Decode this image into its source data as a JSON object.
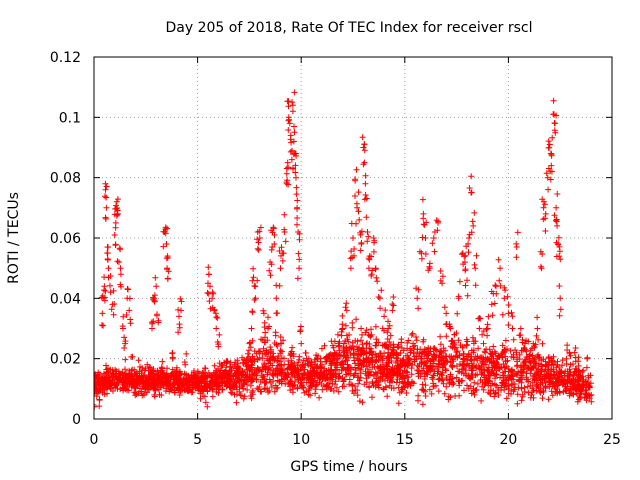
{
  "chart_data": {
    "type": "scatter",
    "title": "Day 205 of 2018, Rate Of TEC Index for receiver rscl",
    "xlabel": "GPS time / hours",
    "ylabel": "ROTI / TECUs",
    "xlim": [
      0,
      25
    ],
    "ylim": [
      0,
      0.12
    ],
    "xticks": [
      0,
      5,
      10,
      15,
      20,
      25
    ],
    "xtick_labels": [
      "0",
      "5",
      "10",
      "15",
      "20",
      "25"
    ],
    "yticks": [
      0,
      0.02,
      0.04,
      0.06,
      0.08,
      0.1,
      0.12
    ],
    "ytick_labels": [
      "0",
      "0.02",
      "0.04",
      "0.06",
      "0.08",
      "0.1",
      "0.12"
    ],
    "grid": true,
    "marker": "+",
    "series": [
      {
        "name": "ROTI",
        "color": "#ff0000",
        "points": [
          [
            0.0,
            0.01
          ],
          [
            0.2,
            0.009
          ],
          [
            0.3,
            0.012
          ],
          [
            0.4,
            0.035
          ],
          [
            0.45,
            0.04
          ],
          [
            0.5,
            0.044
          ],
          [
            0.55,
            0.078
          ],
          [
            0.6,
            0.07
          ],
          [
            0.65,
            0.057
          ],
          [
            0.7,
            0.05
          ],
          [
            0.8,
            0.042
          ],
          [
            0.9,
            0.038
          ],
          [
            1.0,
            0.061
          ],
          [
            1.05,
            0.065
          ],
          [
            1.1,
            0.072
          ],
          [
            1.15,
            0.068
          ],
          [
            1.2,
            0.052
          ],
          [
            1.3,
            0.048
          ],
          [
            1.4,
            0.03
          ],
          [
            1.5,
            0.025
          ],
          [
            1.6,
            0.04
          ],
          [
            1.7,
            0.036
          ],
          [
            1.8,
            0.015
          ],
          [
            2.0,
            0.012
          ],
          [
            2.2,
            0.014
          ],
          [
            2.4,
            0.011
          ],
          [
            2.6,
            0.013
          ],
          [
            2.8,
            0.03
          ],
          [
            2.9,
            0.04
          ],
          [
            3.0,
            0.044
          ],
          [
            3.1,
            0.032
          ],
          [
            3.3,
            0.016
          ],
          [
            3.4,
            0.062
          ],
          [
            3.5,
            0.058
          ],
          [
            3.55,
            0.054
          ],
          [
            3.6,
            0.049
          ],
          [
            3.8,
            0.02
          ],
          [
            4.0,
            0.017
          ],
          [
            4.1,
            0.034
          ],
          [
            4.2,
            0.036
          ],
          [
            4.4,
            0.018
          ],
          [
            4.6,
            0.013
          ],
          [
            4.8,
            0.012
          ],
          [
            5.0,
            0.015
          ],
          [
            5.2,
            0.011
          ],
          [
            5.4,
            0.01
          ],
          [
            5.5,
            0.045
          ],
          [
            5.6,
            0.044
          ],
          [
            5.7,
            0.04
          ],
          [
            5.8,
            0.036
          ],
          [
            5.9,
            0.03
          ],
          [
            6.0,
            0.024
          ],
          [
            6.2,
            0.012
          ],
          [
            6.4,
            0.014
          ],
          [
            6.6,
            0.013
          ],
          [
            6.8,
            0.011
          ],
          [
            7.0,
            0.012
          ],
          [
            7.2,
            0.01
          ],
          [
            7.4,
            0.02
          ],
          [
            7.5,
            0.025
          ],
          [
            7.6,
            0.03
          ],
          [
            7.7,
            0.047
          ],
          [
            7.8,
            0.04
          ],
          [
            7.9,
            0.062
          ],
          [
            8.0,
            0.06
          ],
          [
            8.2,
            0.035
          ],
          [
            8.4,
            0.03
          ],
          [
            8.5,
            0.052
          ],
          [
            8.6,
            0.057
          ],
          [
            8.7,
            0.058
          ],
          [
            8.8,
            0.04
          ],
          [
            9.0,
            0.05
          ],
          [
            9.1,
            0.055
          ],
          [
            9.2,
            0.062
          ],
          [
            9.3,
            0.078
          ],
          [
            9.35,
            0.085
          ],
          [
            9.4,
            0.1
          ],
          [
            9.45,
            0.098
          ],
          [
            9.5,
            0.094
          ],
          [
            9.55,
            0.086
          ],
          [
            9.6,
            0.104
          ],
          [
            9.65,
            0.092
          ],
          [
            9.7,
            0.088
          ],
          [
            9.75,
            0.08
          ],
          [
            9.8,
            0.07
          ],
          [
            9.85,
            0.062
          ],
          [
            9.9,
            0.05
          ],
          [
            10.0,
            0.025
          ],
          [
            10.2,
            0.018
          ],
          [
            10.4,
            0.014
          ],
          [
            10.6,
            0.012
          ],
          [
            10.8,
            0.015
          ],
          [
            11.0,
            0.018
          ],
          [
            11.2,
            0.02
          ],
          [
            11.4,
            0.016
          ],
          [
            11.6,
            0.022
          ],
          [
            11.8,
            0.025
          ],
          [
            12.0,
            0.03
          ],
          [
            12.2,
            0.036
          ],
          [
            12.4,
            0.05
          ],
          [
            12.5,
            0.06
          ],
          [
            12.6,
            0.079
          ],
          [
            12.7,
            0.07
          ],
          [
            12.8,
            0.066
          ],
          [
            12.9,
            0.058
          ],
          [
            13.0,
            0.09
          ],
          [
            13.05,
            0.085
          ],
          [
            13.1,
            0.078
          ],
          [
            13.2,
            0.062
          ],
          [
            13.3,
            0.054
          ],
          [
            13.4,
            0.048
          ],
          [
            13.5,
            0.06
          ],
          [
            13.6,
            0.05
          ],
          [
            13.8,
            0.04
          ],
          [
            14.0,
            0.034
          ],
          [
            14.2,
            0.03
          ],
          [
            14.4,
            0.036
          ],
          [
            14.6,
            0.022
          ],
          [
            14.8,
            0.018
          ],
          [
            15.0,
            0.016
          ],
          [
            15.2,
            0.02
          ],
          [
            15.4,
            0.025
          ],
          [
            15.6,
            0.04
          ],
          [
            15.8,
            0.055
          ],
          [
            15.9,
            0.068
          ],
          [
            16.0,
            0.06
          ],
          [
            16.2,
            0.05
          ],
          [
            16.4,
            0.06
          ],
          [
            16.6,
            0.065
          ],
          [
            16.8,
            0.045
          ],
          [
            17.0,
            0.035
          ],
          [
            17.2,
            0.03
          ],
          [
            17.4,
            0.028
          ],
          [
            17.6,
            0.04
          ],
          [
            17.8,
            0.055
          ],
          [
            17.9,
            0.052
          ],
          [
            18.0,
            0.046
          ],
          [
            18.1,
            0.06
          ],
          [
            18.2,
            0.075
          ],
          [
            18.3,
            0.064
          ],
          [
            18.4,
            0.05
          ],
          [
            18.6,
            0.03
          ],
          [
            18.8,
            0.025
          ],
          [
            19.0,
            0.03
          ],
          [
            19.2,
            0.038
          ],
          [
            19.4,
            0.044
          ],
          [
            19.6,
            0.05
          ],
          [
            19.8,
            0.04
          ],
          [
            20.0,
            0.035
          ],
          [
            20.2,
            0.03
          ],
          [
            20.4,
            0.057
          ],
          [
            20.6,
            0.03
          ],
          [
            20.8,
            0.025
          ],
          [
            21.0,
            0.02
          ],
          [
            21.2,
            0.025
          ],
          [
            21.4,
            0.03
          ],
          [
            21.6,
            0.05
          ],
          [
            21.7,
            0.07
          ],
          [
            21.8,
            0.068
          ],
          [
            21.9,
            0.08
          ],
          [
            22.0,
            0.091
          ],
          [
            22.05,
            0.088
          ],
          [
            22.1,
            0.082
          ],
          [
            22.2,
            0.101
          ],
          [
            22.25,
            0.098
          ],
          [
            22.3,
            0.07
          ],
          [
            22.35,
            0.064
          ],
          [
            22.4,
            0.058
          ],
          [
            22.45,
            0.054
          ],
          [
            22.5,
            0.04
          ],
          [
            22.8,
            0.02
          ],
          [
            23.0,
            0.018
          ],
          [
            23.2,
            0.022
          ],
          [
            23.4,
            0.016
          ],
          [
            23.6,
            0.014
          ],
          [
            23.8,
            0.02
          ],
          [
            24.0,
            0.008
          ]
        ],
        "dense_band": {
          "note": "continuous dense cluster of markers along the baseline across the full day",
          "x_range": [
            0,
            24
          ],
          "center_profile": [
            [
              0,
              0.012
            ],
            [
              1,
              0.013
            ],
            [
              2,
              0.012
            ],
            [
              3,
              0.013
            ],
            [
              4,
              0.012
            ],
            [
              5,
              0.012
            ],
            [
              6,
              0.013
            ],
            [
              7,
              0.014
            ],
            [
              8,
              0.016
            ],
            [
              9,
              0.018
            ],
            [
              10,
              0.014
            ],
            [
              11,
              0.015
            ],
            [
              12,
              0.018
            ],
            [
              13,
              0.02
            ],
            [
              14,
              0.018
            ],
            [
              15,
              0.016
            ],
            [
              16,
              0.018
            ],
            [
              17,
              0.017
            ],
            [
              18,
              0.018
            ],
            [
              19,
              0.017
            ],
            [
              20,
              0.016
            ],
            [
              21,
              0.016
            ],
            [
              22,
              0.015
            ],
            [
              23,
              0.012
            ],
            [
              24,
              0.01
            ]
          ],
          "spread_profile": [
            [
              0,
              0.004
            ],
            [
              1,
              0.005
            ],
            [
              2,
              0.004
            ],
            [
              3,
              0.005
            ],
            [
              4,
              0.004
            ],
            [
              5,
              0.004
            ],
            [
              6,
              0.005
            ],
            [
              7,
              0.006
            ],
            [
              8,
              0.01
            ],
            [
              9,
              0.01
            ],
            [
              10,
              0.006
            ],
            [
              11,
              0.007
            ],
            [
              12,
              0.01
            ],
            [
              13,
              0.012
            ],
            [
              14,
              0.01
            ],
            [
              15,
              0.009
            ],
            [
              16,
              0.011
            ],
            [
              17,
              0.01
            ],
            [
              18,
              0.01
            ],
            [
              19,
              0.01
            ],
            [
              20,
              0.009
            ],
            [
              21,
              0.009
            ],
            [
              22,
              0.008
            ],
            [
              23,
              0.006
            ],
            [
              24,
              0.005
            ]
          ],
          "min_value": 0.003
        }
      }
    ]
  }
}
